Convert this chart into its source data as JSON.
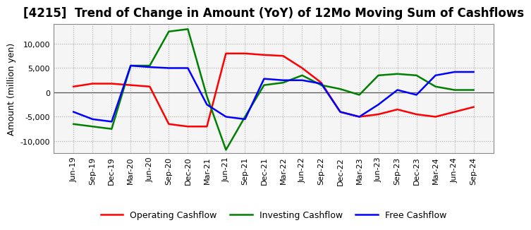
{
  "title": "[4215]  Trend of Change in Amount (YoY) of 12Mo Moving Sum of Cashflows",
  "ylabel": "Amount (million yen)",
  "x_labels": [
    "Jun-19",
    "Sep-19",
    "Dec-19",
    "Mar-20",
    "Jun-20",
    "Sep-20",
    "Dec-20",
    "Mar-21",
    "Jun-21",
    "Sep-21",
    "Dec-21",
    "Mar-22",
    "Jun-22",
    "Sep-22",
    "Dec-22",
    "Mar-23",
    "Jun-23",
    "Sep-23",
    "Dec-23",
    "Mar-24",
    "Jun-24",
    "Sep-24"
  ],
  "operating": [
    1200,
    1800,
    1800,
    1500,
    1200,
    -6500,
    -7000,
    -7000,
    8000,
    8000,
    7700,
    7500,
    5000,
    2000,
    -4000,
    -5000,
    -4500,
    -3500,
    -4500,
    -5000,
    -4000,
    -3000
  ],
  "investing": [
    -6500,
    -7000,
    -7500,
    5500,
    5500,
    12500,
    13000,
    -800,
    -11800,
    -5000,
    1500,
    2000,
    3500,
    1500,
    700,
    -500,
    3500,
    3800,
    3500,
    1200,
    500,
    500
  ],
  "free": [
    -4000,
    -5500,
    -6000,
    5500,
    5200,
    5000,
    5000,
    -2500,
    -5000,
    -5500,
    2800,
    2500,
    2500,
    1800,
    -4000,
    -5000,
    -2500,
    500,
    -500,
    3500,
    4200,
    4200
  ],
  "op_color": "#ff0000",
  "inv_color": "#008000",
  "free_color": "#0000ff",
  "ylim": [
    -12500,
    14000
  ],
  "yticks": [
    -10000,
    -5000,
    0,
    5000,
    10000
  ],
  "plot_bg_color": "#f5f5f5",
  "background_color": "#ffffff",
  "grid_color": "#aaaaaa",
  "title_fontsize": 12,
  "label_fontsize": 9,
  "tick_fontsize": 8
}
